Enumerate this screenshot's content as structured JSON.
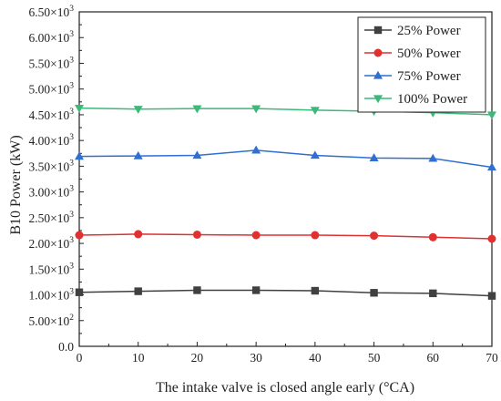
{
  "chart_data": {
    "type": "line",
    "xlabel": "The intake valve is closed angle early (°CA)",
    "ylabel": "B10 Power (kW)",
    "x": [
      0,
      10,
      20,
      30,
      40,
      50,
      60,
      70
    ],
    "xlim": [
      0,
      70
    ],
    "ylim": [
      0,
      6500
    ],
    "x_ticks": [
      0,
      10,
      20,
      30,
      40,
      50,
      60,
      70
    ],
    "y_ticks": [
      {
        "value": 0,
        "mantissa": "0.0",
        "exponent": ""
      },
      {
        "value": 500,
        "mantissa": "5.00×10",
        "exponent": "2"
      },
      {
        "value": 1000,
        "mantissa": "1.00×10",
        "exponent": "3"
      },
      {
        "value": 1500,
        "mantissa": "1.50×10",
        "exponent": "3"
      },
      {
        "value": 2000,
        "mantissa": "2.00×10",
        "exponent": "3"
      },
      {
        "value": 2500,
        "mantissa": "2.50×10",
        "exponent": "3"
      },
      {
        "value": 3000,
        "mantissa": "3.00×10",
        "exponent": "3"
      },
      {
        "value": 3500,
        "mantissa": "3.50×10",
        "exponent": "3"
      },
      {
        "value": 4000,
        "mantissa": "4.00×10",
        "exponent": "3"
      },
      {
        "value": 4500,
        "mantissa": "4.50×10",
        "exponent": "3"
      },
      {
        "value": 5000,
        "mantissa": "5.00×10",
        "exponent": "3"
      },
      {
        "value": 5500,
        "mantissa": "5.50×10",
        "exponent": "3"
      },
      {
        "value": 6000,
        "mantissa": "6.00×10",
        "exponent": "3"
      },
      {
        "value": 6500,
        "mantissa": "6.50×10",
        "exponent": "3"
      }
    ],
    "grid": false,
    "legend_position": "top-right",
    "series": [
      {
        "name": "25% Power",
        "color": "#404040",
        "marker": "square",
        "values": [
          1050,
          1070,
          1090,
          1090,
          1080,
          1040,
          1030,
          980
        ]
      },
      {
        "name": "50% Power",
        "color": "#e03030",
        "marker": "circle",
        "values": [
          2160,
          2180,
          2170,
          2160,
          2160,
          2150,
          2120,
          2090
        ]
      },
      {
        "name": "75% Power",
        "color": "#2f6fd0",
        "marker": "triangle-up",
        "values": [
          3690,
          3700,
          3710,
          3810,
          3710,
          3660,
          3650,
          3480
        ]
      },
      {
        "name": "100% Power",
        "color": "#3cb878",
        "marker": "triangle-down",
        "values": [
          4630,
          4610,
          4620,
          4620,
          4590,
          4570,
          4540,
          4500
        ]
      }
    ]
  }
}
